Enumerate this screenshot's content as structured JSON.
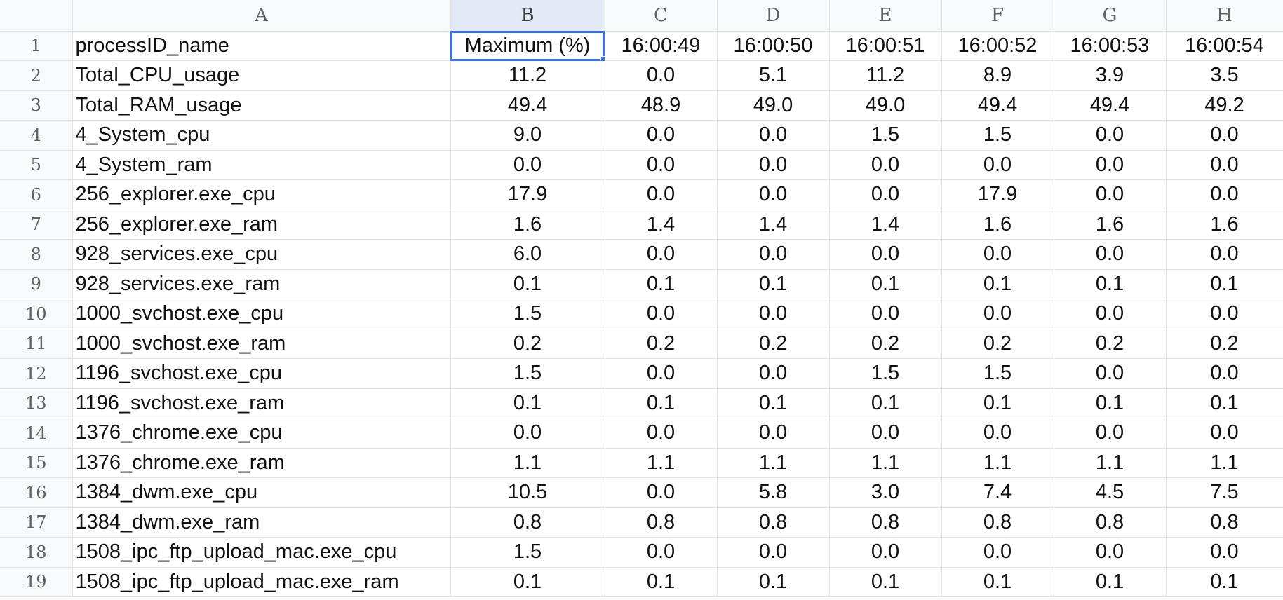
{
  "columns": [
    "A",
    "B",
    "C",
    "D",
    "E",
    "F",
    "G",
    "H"
  ],
  "header_row": {
    "row_number": "1",
    "cells": [
      "processID_name",
      "Maximum (%)",
      "16:00:49",
      "16:00:50",
      "16:00:51",
      "16:00:52",
      "16:00:53",
      "16:00:54"
    ]
  },
  "rows": [
    {
      "n": "2",
      "name": "Total_CPU_usage",
      "vals": [
        "11.2",
        "0.0",
        "5.1",
        "11.2",
        "8.9",
        "3.9",
        "3.5"
      ]
    },
    {
      "n": "3",
      "name": "Total_RAM_usage",
      "vals": [
        "49.4",
        "48.9",
        "49.0",
        "49.0",
        "49.4",
        "49.4",
        "49.2"
      ]
    },
    {
      "n": "4",
      "name": "4_System_cpu",
      "vals": [
        "9.0",
        "0.0",
        "0.0",
        "1.5",
        "1.5",
        "0.0",
        "0.0"
      ]
    },
    {
      "n": "5",
      "name": "4_System_ram",
      "vals": [
        "0.0",
        "0.0",
        "0.0",
        "0.0",
        "0.0",
        "0.0",
        "0.0"
      ]
    },
    {
      "n": "6",
      "name": "256_explorer.exe_cpu",
      "vals": [
        "17.9",
        "0.0",
        "0.0",
        "0.0",
        "17.9",
        "0.0",
        "0.0"
      ]
    },
    {
      "n": "7",
      "name": "256_explorer.exe_ram",
      "vals": [
        "1.6",
        "1.4",
        "1.4",
        "1.4",
        "1.6",
        "1.6",
        "1.6"
      ]
    },
    {
      "n": "8",
      "name": "928_services.exe_cpu",
      "vals": [
        "6.0",
        "0.0",
        "0.0",
        "0.0",
        "0.0",
        "0.0",
        "0.0"
      ]
    },
    {
      "n": "9",
      "name": "928_services.exe_ram",
      "vals": [
        "0.1",
        "0.1",
        "0.1",
        "0.1",
        "0.1",
        "0.1",
        "0.1"
      ]
    },
    {
      "n": "10",
      "name": "1000_svchost.exe_cpu",
      "vals": [
        "1.5",
        "0.0",
        "0.0",
        "0.0",
        "0.0",
        "0.0",
        "0.0"
      ]
    },
    {
      "n": "11",
      "name": "1000_svchost.exe_ram",
      "vals": [
        "0.2",
        "0.2",
        "0.2",
        "0.2",
        "0.2",
        "0.2",
        "0.2"
      ]
    },
    {
      "n": "12",
      "name": "1196_svchost.exe_cpu",
      "vals": [
        "1.5",
        "0.0",
        "0.0",
        "1.5",
        "1.5",
        "0.0",
        "0.0"
      ]
    },
    {
      "n": "13",
      "name": "1196_svchost.exe_ram",
      "vals": [
        "0.1",
        "0.1",
        "0.1",
        "0.1",
        "0.1",
        "0.1",
        "0.1"
      ]
    },
    {
      "n": "14",
      "name": "1376_chrome.exe_cpu",
      "vals": [
        "0.0",
        "0.0",
        "0.0",
        "0.0",
        "0.0",
        "0.0",
        "0.0"
      ]
    },
    {
      "n": "15",
      "name": "1376_chrome.exe_ram",
      "vals": [
        "1.1",
        "1.1",
        "1.1",
        "1.1",
        "1.1",
        "1.1",
        "1.1"
      ]
    },
    {
      "n": "16",
      "name": "1384_dwm.exe_cpu",
      "vals": [
        "10.5",
        "0.0",
        "5.8",
        "3.0",
        "7.4",
        "4.5",
        "7.5"
      ]
    },
    {
      "n": "17",
      "name": "1384_dwm.exe_ram",
      "vals": [
        "0.8",
        "0.8",
        "0.8",
        "0.8",
        "0.8",
        "0.8",
        "0.8"
      ]
    },
    {
      "n": "18",
      "name": "1508_ipc_ftp_upload_mac.exe_cpu",
      "vals": [
        "1.5",
        "0.0",
        "0.0",
        "0.0",
        "0.0",
        "0.0",
        "0.0"
      ]
    },
    {
      "n": "19",
      "name": "1508_ipc_ftp_upload_mac.exe_ram",
      "vals": [
        "0.1",
        "0.1",
        "0.1",
        "0.1",
        "0.1",
        "0.1",
        "0.1"
      ]
    }
  ],
  "colors": {
    "selection": "#3b73e6",
    "header_bg": "#f8f9fa",
    "active_header_bg": "#e3e9f5",
    "gridline": "#e2e3e3"
  }
}
